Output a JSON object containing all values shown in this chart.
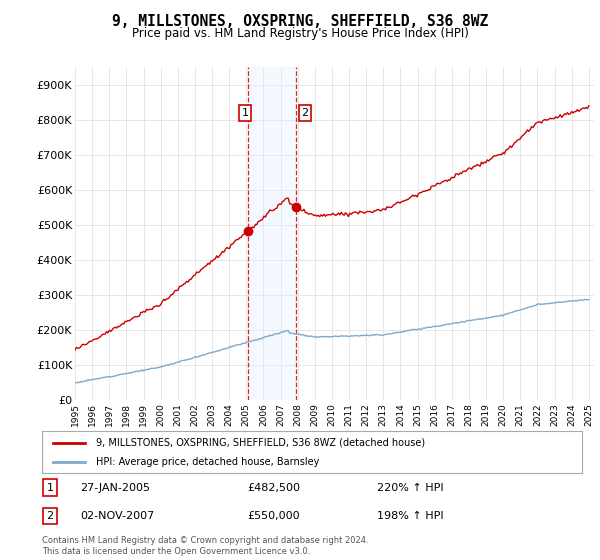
{
  "title": "9, MILLSTONES, OXSPRING, SHEFFIELD, S36 8WZ",
  "subtitle": "Price paid vs. HM Land Registry's House Price Index (HPI)",
  "legend_line1": "9, MILLSTONES, OXSPRING, SHEFFIELD, S36 8WZ (detached house)",
  "legend_line2": "HPI: Average price, detached house, Barnsley",
  "transaction1_date": "27-JAN-2005",
  "transaction1_price": "£482,500",
  "transaction1_hpi": "220% ↑ HPI",
  "transaction2_date": "02-NOV-2007",
  "transaction2_price": "£550,000",
  "transaction2_hpi": "198% ↑ HPI",
  "footer": "Contains HM Land Registry data © Crown copyright and database right 2024.\nThis data is licensed under the Open Government Licence v3.0.",
  "red_color": "#cc0000",
  "blue_color": "#7eaacc",
  "shade_color": "#ddeeff",
  "ylim": [
    0,
    950000
  ],
  "yticks": [
    0,
    100000,
    200000,
    300000,
    400000,
    500000,
    600000,
    700000,
    800000,
    900000
  ],
  "ytick_labels": [
    "£0",
    "£100K",
    "£200K",
    "£300K",
    "£400K",
    "£500K",
    "£600K",
    "£700K",
    "£800K",
    "£900K"
  ],
  "t1_year": 2005.08,
  "t2_year": 2007.92,
  "price1": 482500,
  "price2": 550000,
  "xmin": 1995,
  "xmax": 2025
}
